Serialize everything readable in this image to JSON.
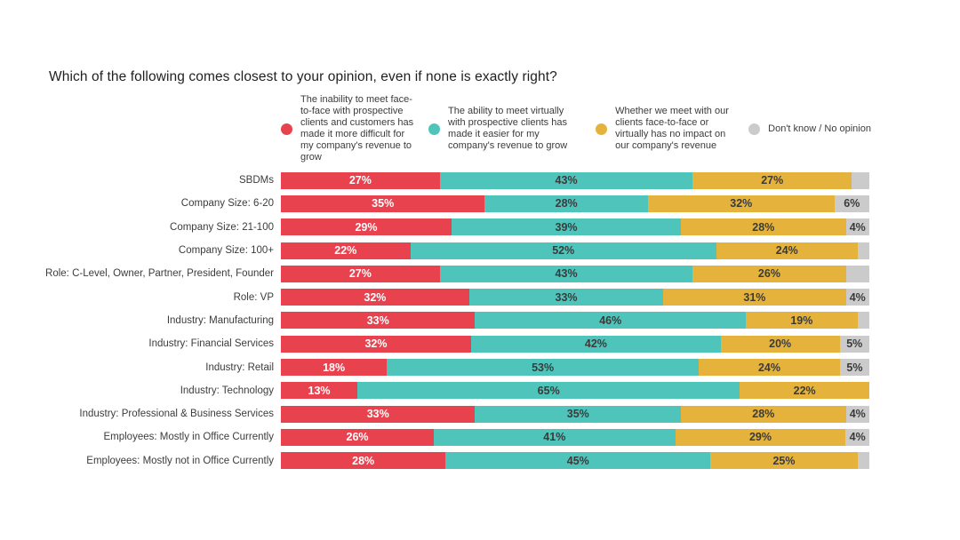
{
  "page": {
    "title": "Which of the following comes closest to your opinion, even if none is exactly right?"
  },
  "chart_data": {
    "type": "bar",
    "variant": "horizontal-stacked-percent",
    "title": "Which of the following comes closest to your opinion, even if none is exactly right?",
    "legend_position": "top",
    "grid": false,
    "axis_labels_hidden": true,
    "categories": [
      "SBDMs",
      "Company Size: 6-20",
      "Company Size: 21-100",
      "Company Size: 100+",
      "Role: C-Level, Owner, Partner, President, Founder",
      "Role: VP",
      "Industry: Manufacturing",
      "Industry: Financial Services",
      "Industry: Retail",
      "Industry: Technology",
      "Industry: Professional & Business Services",
      "Employees: Mostly in Office Currently",
      "Employees: Mostly not in Office Currently"
    ],
    "series": [
      {
        "name": "The inability to meet face-to-face with prospective clients and customers has made it more difficult for my company's revenue to grow",
        "color": "#E8424F",
        "label_color": "#FFFFFF",
        "values": [
          27,
          35,
          29,
          22,
          27,
          32,
          33,
          32,
          18,
          13,
          33,
          26,
          28
        ],
        "labels": [
          "27%",
          "35%",
          "29%",
          "22%",
          "27%",
          "32%",
          "33%",
          "32%",
          "18%",
          "13%",
          "33%",
          "26%",
          "28%"
        ]
      },
      {
        "name": "The ability to meet virtually with prospective clients has made it easier for my company's revenue to grow",
        "color": "#4FC4BB",
        "label_color": "#3B3B3B",
        "values": [
          43,
          28,
          39,
          52,
          43,
          33,
          46,
          42,
          53,
          65,
          35,
          41,
          45
        ],
        "labels": [
          "43%",
          "28%",
          "39%",
          "52%",
          "43%",
          "33%",
          "46%",
          "42%",
          "53%",
          "65%",
          "35%",
          "41%",
          "45%"
        ]
      },
      {
        "name": "Whether we meet with our clients face-to-face or virtually has no impact on our company's revenue",
        "color": "#E5B33C",
        "label_color": "#3B3B3B",
        "values": [
          27,
          32,
          28,
          24,
          26,
          31,
          19,
          20,
          24,
          22,
          28,
          29,
          25
        ],
        "labels": [
          "27%",
          "32%",
          "28%",
          "24%",
          "26%",
          "31%",
          "19%",
          "20%",
          "24%",
          "22%",
          "28%",
          "29%",
          "25%"
        ]
      },
      {
        "name": "Don't know / No opinion",
        "color": "#CBCBCB",
        "label_color": "#3B3B3B",
        "values": [
          3,
          6,
          4,
          2,
          4,
          4,
          2,
          5,
          5,
          0,
          4,
          4,
          2
        ],
        "labels": [
          "",
          "6%",
          "4%",
          "",
          "",
          "4%",
          "",
          "5%",
          "5%",
          "",
          "4%",
          "4%",
          ""
        ]
      }
    ]
  }
}
